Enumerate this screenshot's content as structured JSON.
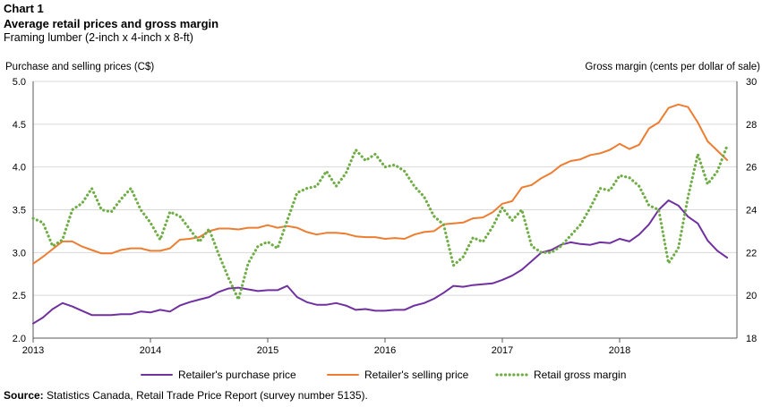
{
  "header": {
    "chart_number": "Chart 1",
    "title": "Average retail prices and gross margin",
    "subtitle": "Framing lumber (2-inch x 4-inch x 8-ft)"
  },
  "source": {
    "label": "Source:",
    "text": " Statistics Canada, Retail Trade Price Report (survey number 5135)."
  },
  "colors": {
    "purchase": "#7030a0",
    "selling": "#ed7d31",
    "margin": "#70ad47",
    "grid": "#d9d9d9",
    "axis": "#595959"
  },
  "chart_data": {
    "type": "line",
    "title": "Average retail prices and gross margin",
    "subtitle": "Framing lumber (2-inch x 4-inch x 8-ft)",
    "y_left_label": "Purchase and selling prices (C$)",
    "y_right_label": "Gross margin (cents per dollar of sale)",
    "y_left_lim": [
      2.0,
      5.0
    ],
    "y_left_ticks": [
      "2.0",
      "2.5",
      "3.0",
      "3.5",
      "4.0",
      "4.5",
      "5.0"
    ],
    "y_right_lim": [
      18,
      30
    ],
    "y_right_ticks": [
      "18",
      "20",
      "22",
      "24",
      "26",
      "28",
      "30"
    ],
    "x_tick_labels": [
      "2013",
      "2014",
      "2015",
      "2016",
      "2017",
      "2018"
    ],
    "x_start_year": 2013,
    "x_end_year": 2019,
    "grid": true,
    "legend_position": "bottom",
    "months_per_year": 12,
    "series": [
      {
        "name": "Retailer's purchase price",
        "axis": "left",
        "style": "solid",
        "values": [
          2.17,
          2.24,
          2.34,
          2.41,
          2.37,
          2.32,
          2.27,
          2.27,
          2.27,
          2.28,
          2.28,
          2.31,
          2.3,
          2.33,
          2.31,
          2.38,
          2.42,
          2.45,
          2.48,
          2.54,
          2.58,
          2.59,
          2.57,
          2.55,
          2.56,
          2.56,
          2.61,
          2.48,
          2.42,
          2.39,
          2.39,
          2.41,
          2.38,
          2.33,
          2.34,
          2.32,
          2.32,
          2.33,
          2.33,
          2.38,
          2.41,
          2.46,
          2.53,
          2.61,
          2.6,
          2.62,
          2.63,
          2.64,
          2.68,
          2.73,
          2.8,
          2.9,
          3.0,
          3.03,
          3.09,
          3.12,
          3.1,
          3.09,
          3.12,
          3.11,
          3.16,
          3.13,
          3.21,
          3.33,
          3.5,
          3.61,
          3.55,
          3.42,
          3.34,
          3.14,
          3.02,
          2.94
        ]
      },
      {
        "name": "Retailer's selling price",
        "axis": "left",
        "style": "solid",
        "values": [
          2.87,
          2.95,
          3.04,
          3.13,
          3.13,
          3.07,
          3.03,
          2.99,
          2.99,
          3.03,
          3.05,
          3.05,
          3.02,
          3.02,
          3.05,
          3.15,
          3.16,
          3.18,
          3.25,
          3.28,
          3.28,
          3.27,
          3.29,
          3.29,
          3.32,
          3.29,
          3.31,
          3.29,
          3.24,
          3.21,
          3.23,
          3.23,
          3.22,
          3.19,
          3.18,
          3.18,
          3.16,
          3.17,
          3.16,
          3.21,
          3.24,
          3.25,
          3.33,
          3.34,
          3.35,
          3.4,
          3.41,
          3.47,
          3.57,
          3.6,
          3.76,
          3.79,
          3.87,
          3.93,
          4.02,
          4.07,
          4.09,
          4.14,
          4.16,
          4.2,
          4.27,
          4.21,
          4.26,
          4.45,
          4.52,
          4.69,
          4.73,
          4.7,
          4.52,
          4.3,
          4.19,
          4.08
        ]
      },
      {
        "name": "Retail gross margin",
        "axis": "right",
        "style": "dotted",
        "values": [
          23.6,
          23.4,
          22.3,
          22.6,
          24.0,
          24.3,
          25.0,
          24.0,
          23.9,
          24.5,
          25.0,
          24.0,
          23.4,
          22.6,
          23.9,
          23.7,
          23.1,
          22.5,
          23.1,
          21.9,
          20.8,
          19.8,
          21.5,
          22.3,
          22.5,
          22.2,
          23.5,
          24.8,
          25.0,
          25.1,
          25.8,
          25.1,
          25.7,
          26.8,
          26.3,
          26.6,
          26.0,
          26.1,
          25.8,
          25.1,
          24.6,
          23.7,
          23.3,
          21.4,
          21.8,
          22.7,
          22.5,
          23.2,
          24.1,
          23.5,
          24.0,
          22.3,
          22.0,
          22.0,
          22.3,
          22.8,
          23.3,
          24.1,
          25.0,
          24.9,
          25.6,
          25.5,
          25.1,
          24.2,
          24.0,
          21.5,
          22.2,
          24.6,
          26.6,
          25.2,
          25.8,
          27.0
        ]
      }
    ]
  }
}
